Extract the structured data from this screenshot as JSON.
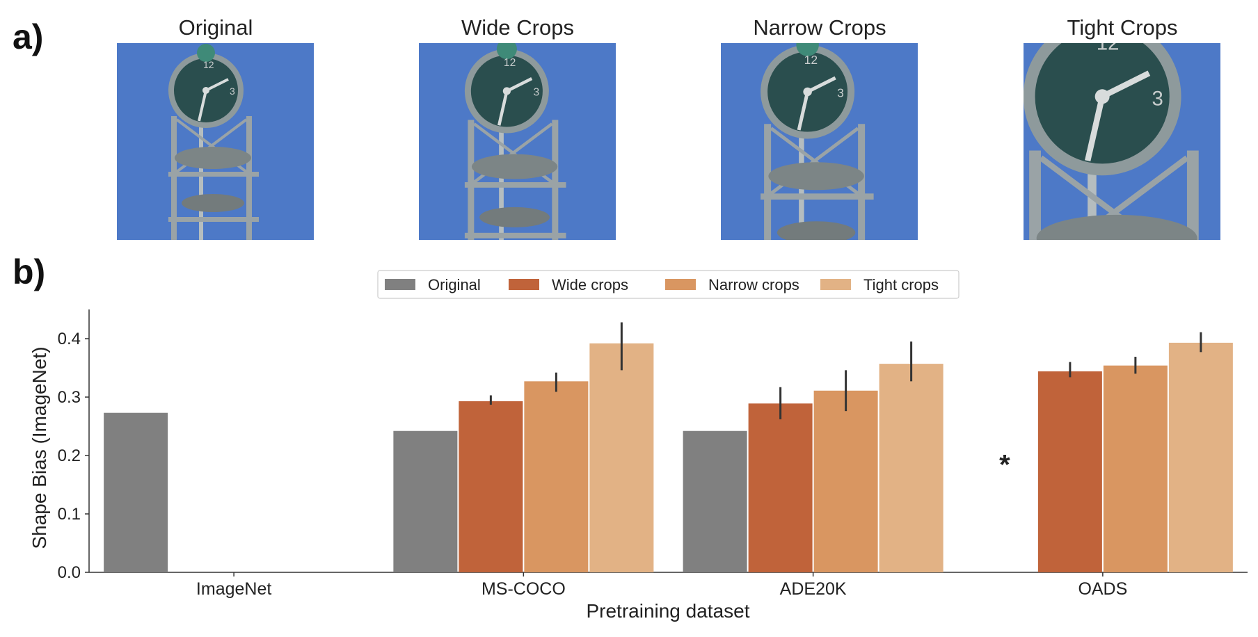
{
  "panels": {
    "a_label": "a)",
    "b_label": "b)"
  },
  "thumbnails": [
    {
      "title": "Original",
      "zoom": 1.0
    },
    {
      "title": "Wide Crops",
      "zoom": 1.12
    },
    {
      "title": "Narrow Crops",
      "zoom": 1.25
    },
    {
      "title": "Tight Crops",
      "zoom": 2.1
    }
  ],
  "colors": {
    "Original": "#808080",
    "Wide crops": "#c0633a",
    "Narrow crops": "#d99661",
    "Tight crops": "#e2b285",
    "sky": "#4d79c7",
    "error_bar": "#333333"
  },
  "chart_data": {
    "type": "bar",
    "xlabel": "Pretraining dataset",
    "ylabel": "Shape Bias (ImageNet)",
    "ylim": [
      0,
      0.45
    ],
    "yticks": [
      "0.0",
      "0.1",
      "0.2",
      "0.3",
      "0.4"
    ],
    "categories": [
      "ImageNet",
      "MS-COCO",
      "ADE20K",
      "OADS"
    ],
    "legend_position": "top-center",
    "series": [
      {
        "name": "Original",
        "values": [
          0.273,
          0.242,
          0.242,
          null
        ],
        "err_low": [
          null,
          null,
          null,
          null
        ],
        "err_high": [
          null,
          null,
          null,
          null
        ]
      },
      {
        "name": "Wide crops",
        "values": [
          null,
          0.293,
          0.289,
          0.344
        ],
        "err_low": [
          null,
          0.287,
          0.262,
          0.334
        ],
        "err_high": [
          null,
          0.303,
          0.317,
          0.36
        ]
      },
      {
        "name": "Narrow crops",
        "values": [
          null,
          0.327,
          0.311,
          0.354
        ],
        "err_low": [
          null,
          0.309,
          0.276,
          0.34
        ],
        "err_high": [
          null,
          0.342,
          0.346,
          0.369
        ]
      },
      {
        "name": "Tight crops",
        "values": [
          null,
          0.392,
          0.357,
          0.393
        ],
        "err_low": [
          null,
          0.346,
          0.327,
          0.377
        ],
        "err_high": [
          null,
          0.428,
          0.395,
          0.411
        ]
      }
    ],
    "annotations": [
      {
        "text": "*",
        "category": "OADS",
        "y": 0.185
      }
    ]
  }
}
